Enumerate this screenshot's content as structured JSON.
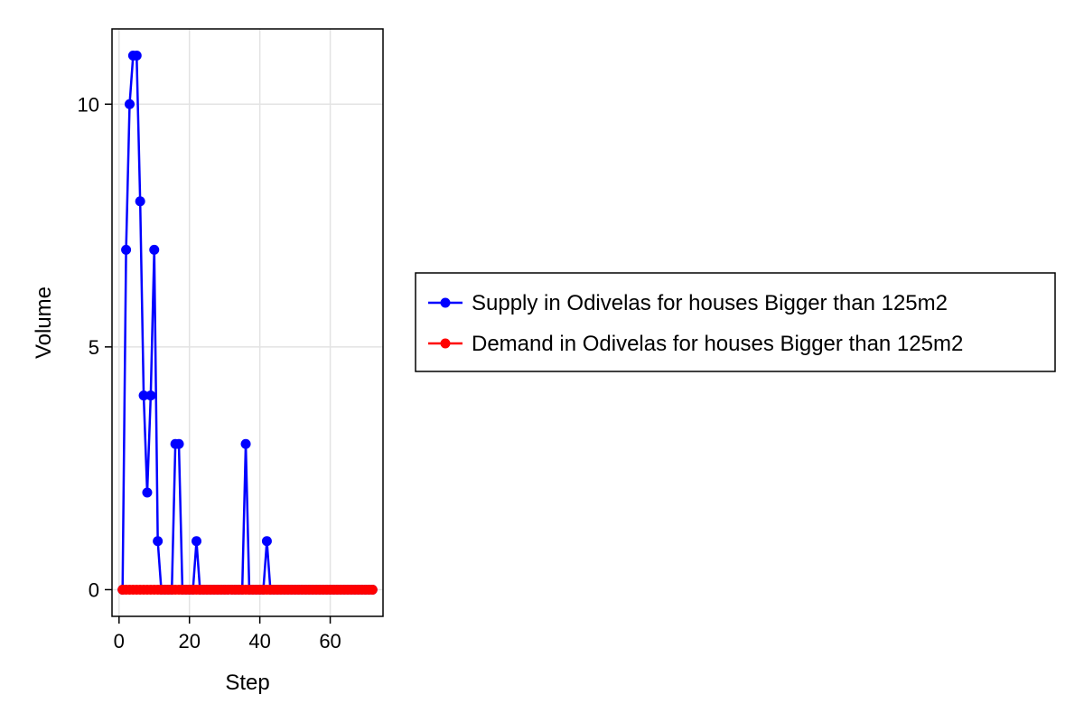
{
  "chart_data": {
    "type": "line",
    "xlabel": "Step",
    "ylabel": "Volume",
    "xlim": [
      -2,
      75
    ],
    "ylim": [
      -0.55,
      11.55
    ],
    "xticks": [
      0,
      20,
      40,
      60
    ],
    "yticks": [
      0,
      5,
      10
    ],
    "grid": true,
    "legend_position": "right",
    "series": [
      {
        "name": "Supply in Odivelas for houses Bigger than 125m2",
        "color": "#0000ff",
        "x": [
          1,
          2,
          3,
          4,
          5,
          6,
          7,
          8,
          9,
          10,
          11,
          12,
          13,
          14,
          15,
          16,
          17,
          18,
          19,
          20,
          21,
          22,
          23,
          24,
          25,
          26,
          27,
          28,
          29,
          30,
          31,
          32,
          33,
          34,
          35,
          36,
          37,
          38,
          39,
          40,
          41,
          42,
          43,
          44,
          45,
          46,
          47,
          48,
          49,
          50,
          51,
          52,
          53,
          54,
          55,
          56,
          57,
          58,
          59,
          60,
          61,
          62,
          63,
          64,
          65,
          66,
          67,
          68,
          69,
          70,
          71,
          72
        ],
        "values": [
          0,
          7,
          10,
          11,
          11,
          8,
          4,
          2,
          4,
          7,
          1,
          0,
          0,
          0,
          0,
          3,
          3,
          0,
          0,
          0,
          0,
          1,
          0,
          0,
          0,
          0,
          0,
          0,
          0,
          0,
          0,
          0,
          0,
          0,
          0,
          3,
          0,
          0,
          0,
          0,
          0,
          1,
          0,
          0,
          0,
          0,
          0,
          0,
          0,
          0,
          0,
          0,
          0,
          0,
          0,
          0,
          0,
          0,
          0,
          0,
          0,
          0,
          0,
          0,
          0,
          0,
          0,
          0,
          0,
          0,
          0,
          0
        ]
      },
      {
        "name": "Demand in Odivelas for houses Bigger than 125m2",
        "color": "#ff0000",
        "x": [
          1,
          2,
          3,
          4,
          5,
          6,
          7,
          8,
          9,
          10,
          11,
          12,
          13,
          14,
          15,
          16,
          17,
          18,
          19,
          20,
          21,
          22,
          23,
          24,
          25,
          26,
          27,
          28,
          29,
          30,
          31,
          32,
          33,
          34,
          35,
          36,
          37,
          38,
          39,
          40,
          41,
          42,
          43,
          44,
          45,
          46,
          47,
          48,
          49,
          50,
          51,
          52,
          53,
          54,
          55,
          56,
          57,
          58,
          59,
          60,
          61,
          62,
          63,
          64,
          65,
          66,
          67,
          68,
          69,
          70,
          71,
          72
        ],
        "values": [
          0,
          0,
          0,
          0,
          0,
          0,
          0,
          0,
          0,
          0,
          0,
          0,
          0,
          0,
          0,
          0,
          0,
          0,
          0,
          0,
          0,
          0,
          0,
          0,
          0,
          0,
          0,
          0,
          0,
          0,
          0,
          0,
          0,
          0,
          0,
          0,
          0,
          0,
          0,
          0,
          0,
          0,
          0,
          0,
          0,
          0,
          0,
          0,
          0,
          0,
          0,
          0,
          0,
          0,
          0,
          0,
          0,
          0,
          0,
          0,
          0,
          0,
          0,
          0,
          0,
          0,
          0,
          0,
          0,
          0,
          0,
          0
        ]
      }
    ]
  }
}
